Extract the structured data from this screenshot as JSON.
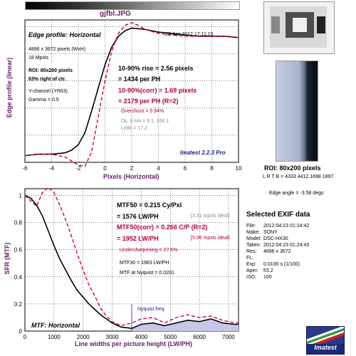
{
  "header": {
    "filename": "gjfbl.JPG"
  },
  "edge_panel": {
    "title": "Edge profile: Horizontal",
    "timestamp": "23-Apr-2012 17:11:15",
    "info": [
      "4896 x 3672 pixels (WxH)",
      "18 Mpxls"
    ],
    "roi": "ROI: 80x200 pixels",
    "roi_pos": "63% right of ctr.",
    "channel": "Y-channel  (YR63)",
    "gamma": "Gamma = 0.5",
    "rise": "10-90% rise = 2.56 pixels",
    "rise_ph": "= 1434 per PH",
    "rise_corr": "10-90%(corr) = 1.69 pixels",
    "rise_corr_ph": "= 2179 per PH  (R=2)",
    "overshoot": "Overshoot = 5.94%",
    "levels": "Dk, lt lvls = 9.1, 156.1",
    "ltdk": "Lt/dk = 17.2",
    "version": "Imatest 2.2.3 Pro",
    "ylabel": "Edge profile (linear)",
    "xlabel": "Pixels (Horizontal)"
  },
  "mtf_panel": {
    "mtf50": "MTF50 = 0.215 Cy/Pxl",
    "mtf50_lw": "= 1576 LW/PH",
    "mtf50_ideal": "[3.31 mpxls ideal]",
    "mtf50_corr": "MTF50(corr) = 0.266 C/P  (R=2)",
    "mtf50_corr_lw": "= 1952 LW/PH",
    "mtf50_corr_ideal": "[5.06 mpxls ideal]",
    "undersharp": "Undersharpening = 27.5%",
    "mtf30": "MTF30 = 1983 LW/PH",
    "nyquist_mtf": "MTF at Nyquist = 0.0201",
    "nyquist_label": "Nyquist freq.",
    "title": "MTF: Horizontal",
    "ylabel": "SFR (MTF)",
    "xlabel": "Line widths per picture height (LW/PH)"
  },
  "roi_caption": {
    "title": "ROI: 80x200 pixels",
    "lrtb": "L R T B = 4333 4412  1698 1897"
  },
  "edge_angle": "Edge angle = -3.58 degs",
  "exif": {
    "title": "Selected EXIF data",
    "rows": [
      {
        "k": "File:",
        "v": "2012:04:23 01:24:42"
      },
      {
        "k": "Make:",
        "v": "SONY"
      },
      {
        "k": "Model:",
        "v": "DSC-HX30"
      },
      {
        "k": "Taken:",
        "v": "2012:04:23 01:24:43"
      },
      {
        "k": "Res:",
        "v": "4896 x 3672"
      },
      {
        "k": "FL:",
        "v": ""
      },
      {
        "k": "Exp:",
        "v": "0.0100 s  (1/100)"
      },
      {
        "k": "Aper:",
        "v": "f/3.2"
      },
      {
        "k": "ISO:",
        "v": "100"
      }
    ]
  },
  "logo": {
    "text": "Imatest"
  },
  "colors": {
    "axis_label": "#6a1b6a",
    "raw_curve": "#000000",
    "corr_curve": "#c8004f",
    "nyquist": "#4a4ad0"
  },
  "chart_data": [
    {
      "type": "line",
      "xlabel": "Pixels (Horizontal)",
      "ylabel": "Edge profile (linear)",
      "xlim": [
        -6,
        10
      ],
      "ylim": [
        0,
        1.05
      ],
      "xticks": [
        -6,
        -4,
        -2,
        0,
        2,
        4,
        6,
        8,
        10
      ],
      "grid": true,
      "series": [
        {
          "x": [
            -6,
            -5,
            -4,
            -3,
            -2.5,
            -2,
            -1.5,
            -1,
            -0.5,
            0,
            0.5,
            1,
            1.5,
            2,
            3,
            4,
            5,
            6,
            7,
            8,
            9,
            10
          ],
          "y": [
            0.05,
            0.06,
            0.06,
            0.07,
            0.09,
            0.13,
            0.22,
            0.38,
            0.55,
            0.72,
            0.85,
            0.93,
            0.97,
            0.99,
            0.98,
            0.96,
            0.95,
            0.94,
            0.93,
            0.93,
            0.93,
            0.92
          ]
        },
        {
          "x": [
            -6,
            -5,
            -4,
            -3,
            -2.5,
            -2,
            -1.5,
            -1,
            -0.5,
            0,
            0.5,
            1,
            1.5,
            2,
            2.5,
            3,
            4,
            5,
            6,
            7,
            8,
            9,
            10
          ],
          "y": [
            0.05,
            0.06,
            0.06,
            0.04,
            0.01,
            -0.02,
            -0.03,
            0.08,
            0.34,
            0.6,
            0.82,
            0.95,
            1.01,
            1.03,
            1.01,
            0.98,
            0.95,
            0.94,
            0.93,
            0.93,
            0.93,
            0.93,
            0.92
          ]
        }
      ]
    },
    {
      "type": "line",
      "xlabel": "Line widths per picture height (LW/PH)",
      "ylabel": "SFR (MTF)",
      "xlim": [
        0,
        7344
      ],
      "ylim": [
        0,
        1.05
      ],
      "xticks": [
        0,
        1000,
        2000,
        3000,
        4000,
        5000,
        6000,
        7000
      ],
      "yticks": [
        0,
        0.2,
        0.4,
        0.6,
        0.8,
        1
      ],
      "grid": true,
      "nyquist_x": 3672,
      "series": [
        {
          "x": [
            0,
            200,
            400,
            600,
            800,
            1000,
            1200,
            1400,
            1600,
            1800,
            2000,
            2200,
            2400,
            2600,
            2800,
            3000,
            3300,
            3672,
            4000,
            4400,
            4800,
            5200,
            5600,
            6000,
            6400,
            6800,
            7200,
            7344
          ],
          "y": [
            1,
            0.98,
            0.93,
            0.85,
            0.74,
            0.63,
            0.53,
            0.45,
            0.37,
            0.3,
            0.25,
            0.2,
            0.16,
            0.12,
            0.09,
            0.06,
            0.03,
            0.02,
            0.05,
            0.06,
            0.04,
            0.06,
            0.08,
            0.07,
            0.09,
            0.06,
            0.05,
            0.05
          ]
        },
        {
          "x": [
            0,
            200,
            400,
            600,
            800,
            1000,
            1200,
            1400,
            1600,
            1800,
            2000,
            2200,
            2400,
            2600,
            2800,
            3000,
            3300,
            3672,
            4000,
            4400,
            4800,
            5200,
            5600,
            6000,
            6400,
            6800,
            7200,
            7344
          ],
          "y": [
            1,
            0.96,
            0.92,
            1.02,
            1.06,
            1.02,
            0.93,
            0.82,
            0.7,
            0.57,
            0.45,
            0.34,
            0.26,
            0.17,
            0.11,
            0.07,
            0.04,
            0.06,
            0.09,
            0.1,
            0.06,
            0.1,
            0.12,
            0.1,
            0.11,
            0.08,
            0.06,
            0.06
          ]
        }
      ]
    }
  ]
}
